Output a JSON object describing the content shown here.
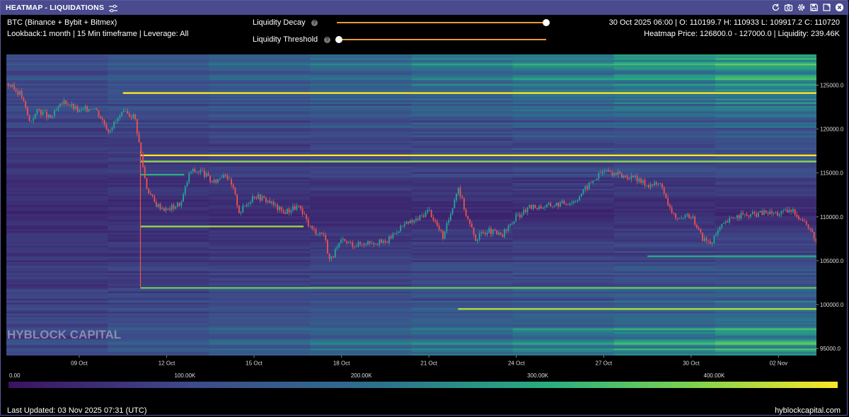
{
  "window": {
    "title": "HEATMAP - LIQUIDATIONS"
  },
  "info": {
    "line1": "BTC (Binance + Bybit + Bitmex)",
    "line2": "Lookback:1 month | 15 Min timeframe | Leverage: All",
    "ohlc": "30 Oct 2025 06:00 | O: 110199.7 H: 110933 L: 109917.2 C: 110720",
    "heatmap": "Heatmap Price: 126800.0 - 127000.0 | Liquidity: 239.46K"
  },
  "controls": {
    "decay_label": "Liquidity Decay",
    "threshold_label": "Liquidity Threshold",
    "help_glyph": "?",
    "decay_value": 1.0,
    "threshold_value": 0.0
  },
  "icons": [
    "settings-sliders-icon",
    "refresh-icon",
    "camera-icon",
    "gear-icon",
    "save-icon",
    "expand-icon",
    "close-icon"
  ],
  "watermark": "HYBLOCK CAPITAL",
  "footer": {
    "updated": "Last Updated: 03 Nov 2025 07:31 (UTC)",
    "site": "hyblockcapital.com"
  },
  "colors": {
    "low": "#3b1261",
    "mid": "#2c728e",
    "high": "#28ae80",
    "max": "#fde725",
    "candle_up": "#26a69a",
    "candle_down": "#ef5350"
  },
  "chart_data": {
    "type": "heatmap",
    "title": "HEATMAP - LIQUIDATIONS",
    "x_ticks": [
      "09 Oct",
      "12 Oct",
      "15 Oct",
      "18 Oct",
      "21 Oct",
      "24 Oct",
      "27 Oct",
      "30 Oct",
      "02 Nov"
    ],
    "x_tick_days": [
      9,
      12,
      15,
      18,
      21,
      24,
      27,
      30,
      33
    ],
    "x_range_days": [
      6.5,
      34.3
    ],
    "y_ticks": [
      "125000.0",
      "120000.0",
      "115000.0",
      "110000.0",
      "105000.0",
      "100000.0",
      "95000.0"
    ],
    "y_tick_values": [
      125000,
      120000,
      115000,
      110000,
      105000,
      100000,
      95000
    ],
    "ylim": [
      94200,
      128500
    ],
    "colorbar": {
      "ticks": [
        "0.00",
        "100.00K",
        "200.00K",
        "300.00K",
        "400.00K"
      ],
      "tick_values": [
        0,
        100000,
        200000,
        300000,
        400000
      ],
      "range": [
        0,
        470000
      ]
    },
    "price_path": [
      [
        6.5,
        125200
      ],
      [
        7.0,
        124000
      ],
      [
        7.3,
        120800
      ],
      [
        7.6,
        122200
      ],
      [
        8.0,
        121200
      ],
      [
        8.5,
        123200
      ],
      [
        9.0,
        122000
      ],
      [
        9.5,
        122600
      ],
      [
        10.0,
        119900
      ],
      [
        10.5,
        121800
      ],
      [
        10.9,
        121500
      ],
      [
        11.1,
        117500
      ],
      [
        11.3,
        113500
      ],
      [
        11.6,
        111500
      ],
      [
        12.0,
        110800
      ],
      [
        12.5,
        111600
      ],
      [
        12.8,
        115200
      ],
      [
        13.2,
        115200
      ],
      [
        13.6,
        113800
      ],
      [
        14.0,
        115100
      ],
      [
        14.3,
        113000
      ],
      [
        14.5,
        110500
      ],
      [
        15.0,
        112500
      ],
      [
        15.5,
        111800
      ],
      [
        16.0,
        110500
      ],
      [
        16.5,
        111200
      ],
      [
        17.0,
        108500
      ],
      [
        17.4,
        108000
      ],
      [
        17.6,
        105000
      ],
      [
        18.0,
        107200
      ],
      [
        18.5,
        106800
      ],
      [
        19.0,
        107200
      ],
      [
        19.5,
        107000
      ],
      [
        20.0,
        108800
      ],
      [
        20.6,
        109700
      ],
      [
        21.0,
        110800
      ],
      [
        21.5,
        107600
      ],
      [
        22.0,
        113500
      ],
      [
        22.3,
        110000
      ],
      [
        22.6,
        107500
      ],
      [
        23.0,
        108500
      ],
      [
        23.5,
        107800
      ],
      [
        24.0,
        110000
      ],
      [
        24.5,
        111100
      ],
      [
        25.0,
        111200
      ],
      [
        25.5,
        111500
      ],
      [
        26.0,
        111800
      ],
      [
        26.5,
        113700
      ],
      [
        27.0,
        115300
      ],
      [
        27.5,
        114800
      ],
      [
        28.0,
        114400
      ],
      [
        28.5,
        113700
      ],
      [
        29.0,
        113700
      ],
      [
        29.2,
        111200
      ],
      [
        29.6,
        109500
      ],
      [
        30.0,
        110200
      ],
      [
        30.4,
        107500
      ],
      [
        30.7,
        107000
      ],
      [
        31.0,
        108800
      ],
      [
        31.5,
        110100
      ],
      [
        32.0,
        110200
      ],
      [
        32.5,
        110500
      ],
      [
        33.0,
        110400
      ],
      [
        33.5,
        110700
      ],
      [
        34.0,
        109000
      ],
      [
        34.3,
        107200
      ]
    ],
    "liquidity_bands": [
      {
        "price": 124100,
        "from_day": 10.5,
        "to_day": 34.3,
        "level": 470000
      },
      {
        "price": 117000,
        "from_day": 11.1,
        "to_day": 34.3,
        "level": 470000
      },
      {
        "price": 116300,
        "from_day": 11.1,
        "to_day": 34.3,
        "level": 400000
      },
      {
        "price": 114800,
        "from_day": 11.1,
        "to_day": 12.6,
        "level": 300000
      },
      {
        "price": 108900,
        "from_day": 11.1,
        "to_day": 16.7,
        "level": 400000
      },
      {
        "price": 105500,
        "from_day": 28.5,
        "to_day": 34.3,
        "level": 300000
      },
      {
        "price": 101900,
        "from_day": 11.1,
        "to_day": 34.3,
        "level": 360000
      },
      {
        "price": 99500,
        "from_day": 22.0,
        "to_day": 34.3,
        "level": 420000
      }
    ]
  }
}
